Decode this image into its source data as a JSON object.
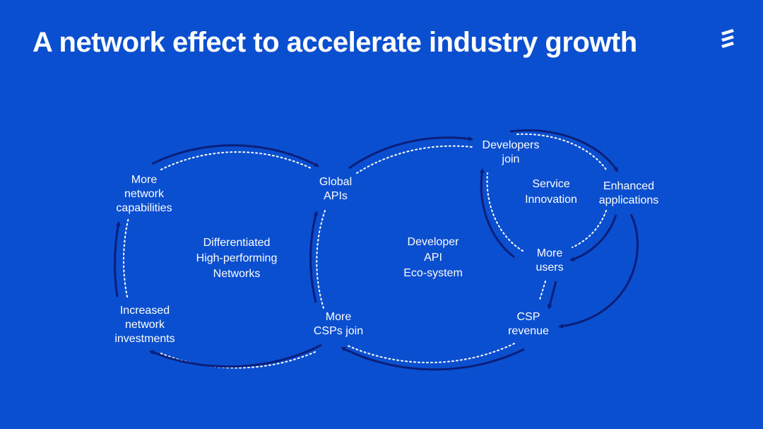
{
  "slide": {
    "title": "A network effect to accelerate industry growth",
    "logo_icon": "ericsson-logo-icon",
    "background_color": "#0a4fd0",
    "arrow_color": "#0b1f7a"
  },
  "diagram": {
    "left_cycle": {
      "center": "Differentiated\nHigh-performing\nNetworks",
      "nodes": {
        "more_network_capabilities": "More\nnetwork\ncapabilities",
        "global_apis": "Global\nAPIs",
        "more_csps_join": "More\nCSPs join",
        "increased_network_investments": "Increased\nnetwork\ninvestments"
      }
    },
    "middle_cycle": {
      "center": "Developer\nAPI\nEco-system",
      "nodes": {
        "developers_join": "Developers\njoin",
        "csp_revenue": "CSP\nrevenue"
      }
    },
    "right_cycle": {
      "center": "Service\nInnovation",
      "nodes": {
        "enhanced_applications": "Enhanced\napplications",
        "more_users": "More\nusers"
      }
    }
  }
}
